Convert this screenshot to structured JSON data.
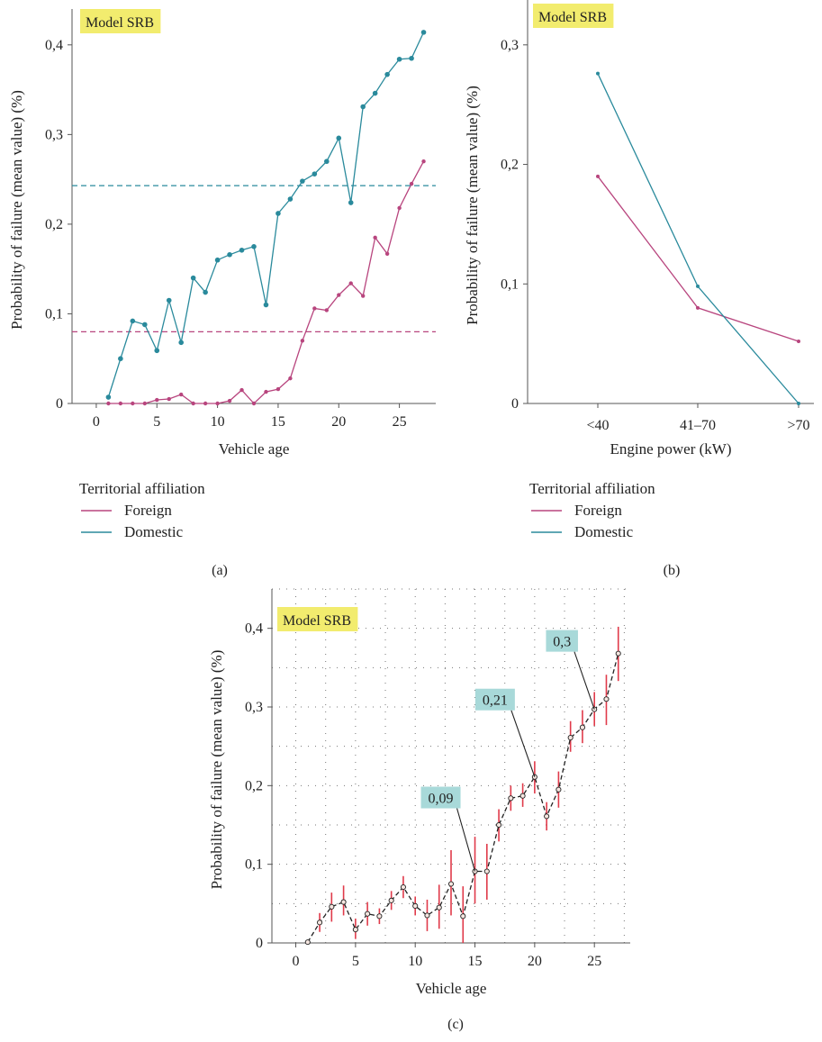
{
  "chart_data": [
    {
      "panel": "(a)",
      "type": "line",
      "badge": "Model SRB",
      "xlabel": "Vehicle age",
      "ylabel": "Probability of failure (mean value) (%)",
      "xlim": [
        -2,
        28
      ],
      "ylim": [
        0,
        0.44
      ],
      "xticks": [
        0,
        5,
        10,
        15,
        20,
        25
      ],
      "xtick_labels": [
        "0",
        "5",
        "10",
        "15",
        "20",
        "25"
      ],
      "yticks": [
        0,
        0.1,
        0.2,
        0.3,
        0.4
      ],
      "ytick_labels": [
        "0",
        "0,1",
        "0,2",
        "0,3",
        "0,4"
      ],
      "legend_title": "Territorial affiliation",
      "series": [
        {
          "name": "Foreign",
          "color": "#b8457e",
          "x": [
            1,
            2,
            3,
            4,
            5,
            6,
            7,
            8,
            9,
            10,
            11,
            12,
            13,
            14,
            15,
            16,
            17,
            18,
            19,
            20,
            21,
            22,
            23,
            24,
            25,
            26,
            27
          ],
          "values": [
            0,
            0,
            0,
            0,
            0.004,
            0.005,
            0.01,
            0,
            0,
            0,
            0.003,
            0.015,
            0,
            0.013,
            0.016,
            0.028,
            0.07,
            0.106,
            0.104,
            0.121,
            0.134,
            0.12,
            0.185,
            0.167,
            0.218,
            0.245,
            0.27
          ],
          "mean": 0.08
        },
        {
          "name": "Domestic",
          "color": "#2a8a9c",
          "x": [
            1,
            2,
            3,
            4,
            5,
            6,
            7,
            8,
            9,
            10,
            11,
            12,
            13,
            14,
            15,
            16,
            17,
            18,
            19,
            20,
            21,
            22,
            23,
            24,
            25,
            26,
            27
          ],
          "values": [
            0.007,
            0.05,
            0.092,
            0.088,
            0.059,
            0.115,
            0.068,
            0.14,
            0.124,
            0.16,
            0.166,
            0.171,
            0.175,
            0.11,
            0.212,
            0.228,
            0.248,
            0.256,
            0.27,
            0.296,
            0.224,
            0.331,
            0.346,
            0.367,
            0.384,
            0.385,
            0.414
          ],
          "mean": 0.243
        }
      ]
    },
    {
      "panel": "(b)",
      "type": "line",
      "badge": "Model SRB",
      "xlabel": "Engine power (kW)",
      "ylabel": "Probability of failure (mean value) (%)",
      "categories": [
        "<40",
        "41–70",
        ">70"
      ],
      "ylim": [
        0,
        0.33
      ],
      "yticks": [
        0,
        0.1,
        0.2,
        0.3
      ],
      "ytick_labels": [
        "0",
        "0,1",
        "0,2",
        "0,3"
      ],
      "legend_title": "Territorial affiliation",
      "series": [
        {
          "name": "Foreign",
          "color": "#b8457e",
          "values": [
            0.19,
            0.08,
            0.052
          ]
        },
        {
          "name": "Domestic",
          "color": "#2a8a9c",
          "values": [
            0.276,
            0.098,
            0
          ]
        }
      ]
    },
    {
      "panel": "(c)",
      "type": "line",
      "badge": "Model SRB",
      "xlabel": "Vehicle age",
      "ylabel": "Probability of failure (mean value) (%)",
      "xlim": [
        -2,
        28
      ],
      "ylim": [
        0,
        0.45
      ],
      "xticks": [
        0,
        5,
        10,
        15,
        20,
        25
      ],
      "xtick_labels": [
        "0",
        "5",
        "10",
        "15",
        "20",
        "25"
      ],
      "yticks": [
        0,
        0.1,
        0.2,
        0.3,
        0.4
      ],
      "ytick_labels": [
        "0",
        "0,1",
        "0,2",
        "0,3",
        "0,4"
      ],
      "grid": true,
      "line_color": "#222222",
      "errorbar_color": "#e03a4a",
      "series": [
        {
          "x": [
            1,
            2,
            3,
            4,
            5,
            6,
            7,
            8,
            9,
            10,
            11,
            12,
            13,
            14,
            15,
            16,
            17,
            18,
            19,
            20,
            21,
            22,
            23,
            24,
            25,
            26,
            27
          ],
          "values": [
            0.001,
            0.026,
            0.046,
            0.052,
            0.017,
            0.037,
            0.034,
            0.054,
            0.071,
            0.047,
            0.035,
            0.045,
            0.075,
            0.034,
            0.091,
            0.091,
            0.15,
            0.184,
            0.187,
            0.211,
            0.161,
            0.195,
            0.261,
            0.274,
            0.297,
            0.31,
            0.368
          ],
          "error_low": [
            0,
            0.014,
            0.027,
            0.035,
            0.005,
            0.022,
            0.024,
            0.042,
            0.057,
            0.035,
            0.015,
            0.018,
            0.035,
            0,
            0.05,
            0.055,
            0.129,
            0.168,
            0.173,
            0.19,
            0.143,
            0.172,
            0.243,
            0.254,
            0.276,
            0.277,
            0.333
          ],
          "error_high": [
            0.003,
            0.038,
            0.064,
            0.073,
            0.031,
            0.052,
            0.044,
            0.066,
            0.085,
            0.059,
            0.055,
            0.074,
            0.118,
            0.072,
            0.135,
            0.126,
            0.17,
            0.2,
            0.203,
            0.231,
            0.179,
            0.218,
            0.282,
            0.296,
            0.319,
            0.341,
            0.402
          ]
        }
      ],
      "annotations": [
        {
          "x": 15,
          "y": 0.091,
          "text": "0,09"
        },
        {
          "x": 20,
          "y": 0.211,
          "text": "0,21"
        },
        {
          "x": 25,
          "y": 0.297,
          "text": "0,3"
        }
      ]
    }
  ],
  "panel_labels": [
    "(a)",
    "(b)",
    "(c)"
  ],
  "colors": {
    "badge": "#f2ec6e",
    "annotation_box": "#a8d9d9"
  }
}
